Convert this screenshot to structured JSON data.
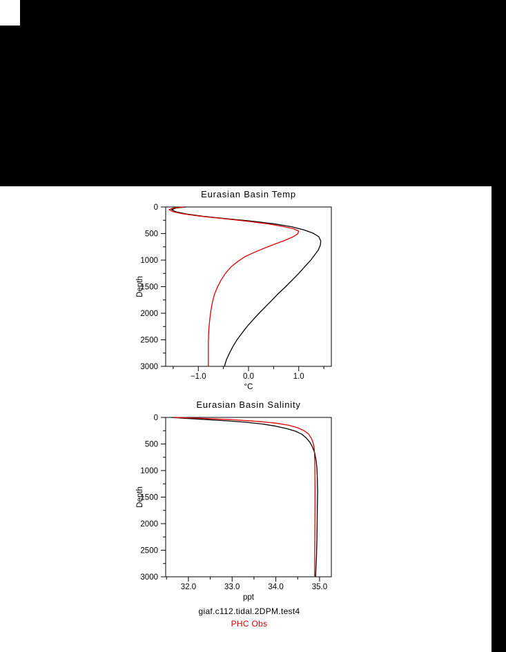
{
  "colors": {
    "background": "#000000",
    "canvas": "#ffffff",
    "axis": "#000000",
    "model_line": "#000000",
    "obs_line": "#e00000"
  },
  "footer": {
    "model_label": "giaf.c112.tidal.2DPM.test4",
    "obs_label": "PHC Obs"
  },
  "chart_data": [
    {
      "type": "line",
      "title": "Eurasian Basin Temp",
      "xlabel": "°C",
      "ylabel": "Depth",
      "xlim": [
        -1.65,
        1.65
      ],
      "ylim": [
        0,
        3000
      ],
      "y_inverted": true,
      "grid": false,
      "xticks": [
        -1.0,
        0.0,
        1.0
      ],
      "xtick_labels": [
        "−1.0",
        "0.0",
        "1.0"
      ],
      "xminor": 0.5,
      "yticks": [
        0,
        500,
        1000,
        1500,
        2000,
        2500,
        3000
      ],
      "ytick_labels": [
        "0",
        "500",
        "1000",
        "1500",
        "2000",
        "2500",
        "3000"
      ],
      "yminor": 250,
      "series": [
        {
          "name": "giaf.c112.tidal.2DPM.test4",
          "color": "#000000",
          "points": [
            [
              -1.25,
              0
            ],
            [
              -1.45,
              20
            ],
            [
              -1.53,
              50
            ],
            [
              -1.45,
              90
            ],
            [
              -1.25,
              130
            ],
            [
              -0.9,
              175
            ],
            [
              -0.45,
              220
            ],
            [
              0.05,
              265
            ],
            [
              0.5,
              315
            ],
            [
              0.85,
              370
            ],
            [
              1.1,
              430
            ],
            [
              1.28,
              490
            ],
            [
              1.4,
              560
            ],
            [
              1.44,
              640
            ],
            [
              1.43,
              720
            ],
            [
              1.39,
              810
            ],
            [
              1.32,
              900
            ],
            [
              1.24,
              1000
            ],
            [
              1.12,
              1125
            ],
            [
              1.0,
              1250
            ],
            [
              0.87,
              1375
            ],
            [
              0.74,
              1500
            ],
            [
              0.6,
              1625
            ],
            [
              0.47,
              1750
            ],
            [
              0.34,
              1875
            ],
            [
              0.21,
              2000
            ],
            [
              0.09,
              2125
            ],
            [
              -0.03,
              2250
            ],
            [
              -0.13,
              2375
            ],
            [
              -0.23,
              2500
            ],
            [
              -0.31,
              2625
            ],
            [
              -0.38,
              2750
            ],
            [
              -0.44,
              2875
            ],
            [
              -0.48,
              3000
            ]
          ]
        },
        {
          "name": "PHC Obs",
          "color": "#e00000",
          "points": [
            [
              -1.3,
              0
            ],
            [
              -1.5,
              20
            ],
            [
              -1.58,
              50
            ],
            [
              -1.5,
              90
            ],
            [
              -1.3,
              130
            ],
            [
              -0.95,
              175
            ],
            [
              -0.5,
              220
            ],
            [
              0.0,
              270
            ],
            [
              0.4,
              320
            ],
            [
              0.7,
              370
            ],
            [
              0.9,
              410
            ],
            [
              1.0,
              455
            ],
            [
              0.98,
              505
            ],
            [
              0.88,
              565
            ],
            [
              0.72,
              630
            ],
            [
              0.52,
              700
            ],
            [
              0.3,
              780
            ],
            [
              0.1,
              860
            ],
            [
              -0.08,
              940
            ],
            [
              -0.22,
              1030
            ],
            [
              -0.35,
              1130
            ],
            [
              -0.46,
              1250
            ],
            [
              -0.55,
              1380
            ],
            [
              -0.62,
              1510
            ],
            [
              -0.68,
              1650
            ],
            [
              -0.72,
              1800
            ],
            [
              -0.75,
              1950
            ],
            [
              -0.77,
              2100
            ],
            [
              -0.79,
              2300
            ],
            [
              -0.8,
              2550
            ],
            [
              -0.8,
              2800
            ],
            [
              -0.8,
              3000
            ]
          ]
        }
      ]
    },
    {
      "type": "line",
      "title": "Eurasian Basin Salinity",
      "xlabel": "ppt",
      "ylabel": "Depth",
      "xlim": [
        31.48,
        35.27
      ],
      "ylim": [
        0,
        3000
      ],
      "y_inverted": true,
      "grid": false,
      "xticks": [
        32.0,
        33.0,
        34.0,
        35.0
      ],
      "xtick_labels": [
        "32.0",
        "33.0",
        "34.0",
        "35.0"
      ],
      "xminor": 0.5,
      "yticks": [
        0,
        500,
        1000,
        1500,
        2000,
        2500,
        3000
      ],
      "ytick_labels": [
        "0",
        "500",
        "1000",
        "1500",
        "2000",
        "2500",
        "3000"
      ],
      "yminor": 250,
      "series": [
        {
          "name": "giaf.c112.tidal.2DPM.test4",
          "color": "#000000",
          "points": [
            [
              31.62,
              0
            ],
            [
              31.9,
              15
            ],
            [
              32.3,
              35
            ],
            [
              32.8,
              60
            ],
            [
              33.3,
              90
            ],
            [
              33.7,
              125
            ],
            [
              34.0,
              165
            ],
            [
              34.25,
              210
            ],
            [
              34.45,
              260
            ],
            [
              34.6,
              320
            ],
            [
              34.7,
              390
            ],
            [
              34.78,
              470
            ],
            [
              34.84,
              560
            ],
            [
              34.89,
              670
            ],
            [
              34.92,
              800
            ],
            [
              34.94,
              950
            ],
            [
              34.95,
              1150
            ],
            [
              34.955,
              1400
            ],
            [
              34.95,
              1700
            ],
            [
              34.945,
              2000
            ],
            [
              34.94,
              2300
            ],
            [
              34.93,
              2600
            ],
            [
              34.92,
              2800
            ],
            [
              34.91,
              3000
            ]
          ]
        },
        {
          "name": "PHC Obs",
          "color": "#e00000",
          "points": [
            [
              31.68,
              0
            ],
            [
              32.1,
              12
            ],
            [
              32.6,
              28
            ],
            [
              33.1,
              48
            ],
            [
              33.6,
              75
            ],
            [
              34.0,
              108
            ],
            [
              34.3,
              148
            ],
            [
              34.5,
              195
            ],
            [
              34.65,
              250
            ],
            [
              34.75,
              315
            ],
            [
              34.81,
              390
            ],
            [
              34.85,
              470
            ],
            [
              34.875,
              560
            ],
            [
              34.885,
              670
            ],
            [
              34.89,
              800
            ],
            [
              34.893,
              1000
            ],
            [
              34.895,
              1300
            ],
            [
              34.895,
              1700
            ],
            [
              34.893,
              2100
            ],
            [
              34.89,
              2500
            ],
            [
              34.888,
              2800
            ],
            [
              34.886,
              3000
            ]
          ]
        }
      ]
    }
  ]
}
